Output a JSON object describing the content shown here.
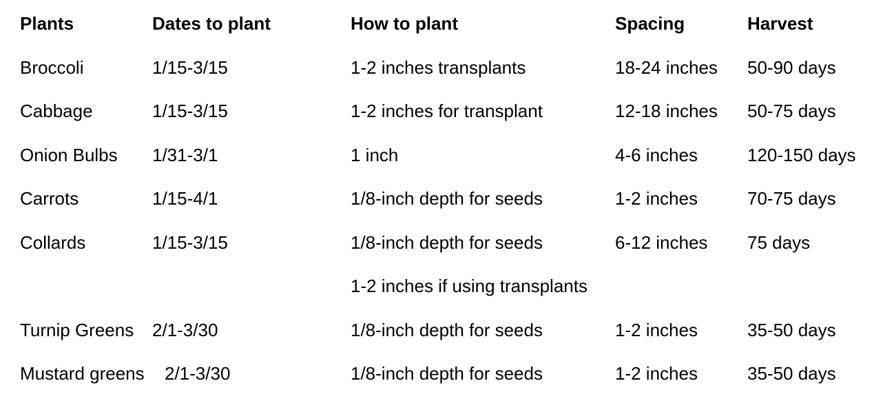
{
  "headers": {
    "plants": "Plants",
    "dates": "Dates to plant",
    "how": "How to plant",
    "spacing": "Spacing",
    "harvest": "Harvest"
  },
  "rows": [
    {
      "plant": "Broccoli",
      "dates": "1/15-3/15",
      "how": "1-2 inches transplants",
      "spacing": "18-24 inches",
      "harvest": "50-90 days"
    },
    {
      "plant": "Cabbage",
      "dates": "1/15-3/15",
      "how": "1-2 inches for transplant",
      "spacing": "12-18 inches",
      "harvest": "50-75 days"
    },
    {
      "plant": "Onion Bulbs",
      "dates": "1/31-3/1",
      "how": "1 inch",
      "spacing": "4-6 inches",
      "harvest": "120-150 days"
    },
    {
      "plant": "Carrots",
      "dates": "1/15-4/1",
      "how": "1/8-inch depth for seeds",
      "spacing": "1-2 inches",
      "harvest": "70-75 days"
    },
    {
      "plant": "Collards",
      "dates": "1/15-3/15",
      "how": "1/8-inch depth for seeds",
      "spacing": "6-12 inches",
      "harvest": "75 days"
    },
    {
      "plant": "",
      "dates": "",
      "how": "1-2 inches if using transplants",
      "spacing": "",
      "harvest": ""
    },
    {
      "plant": "Turnip Greens",
      "dates": "2/1-3/30",
      "how": "1/8-inch depth for seeds",
      "spacing": "1-2 inches",
      "harvest": "35-50 days"
    },
    {
      "plant": "Mustard greens",
      "dates": "2/1-3/30",
      "how": "1/8-inch depth for seeds",
      "spacing": "1-2 inches",
      "harvest": "35-50 days"
    }
  ]
}
